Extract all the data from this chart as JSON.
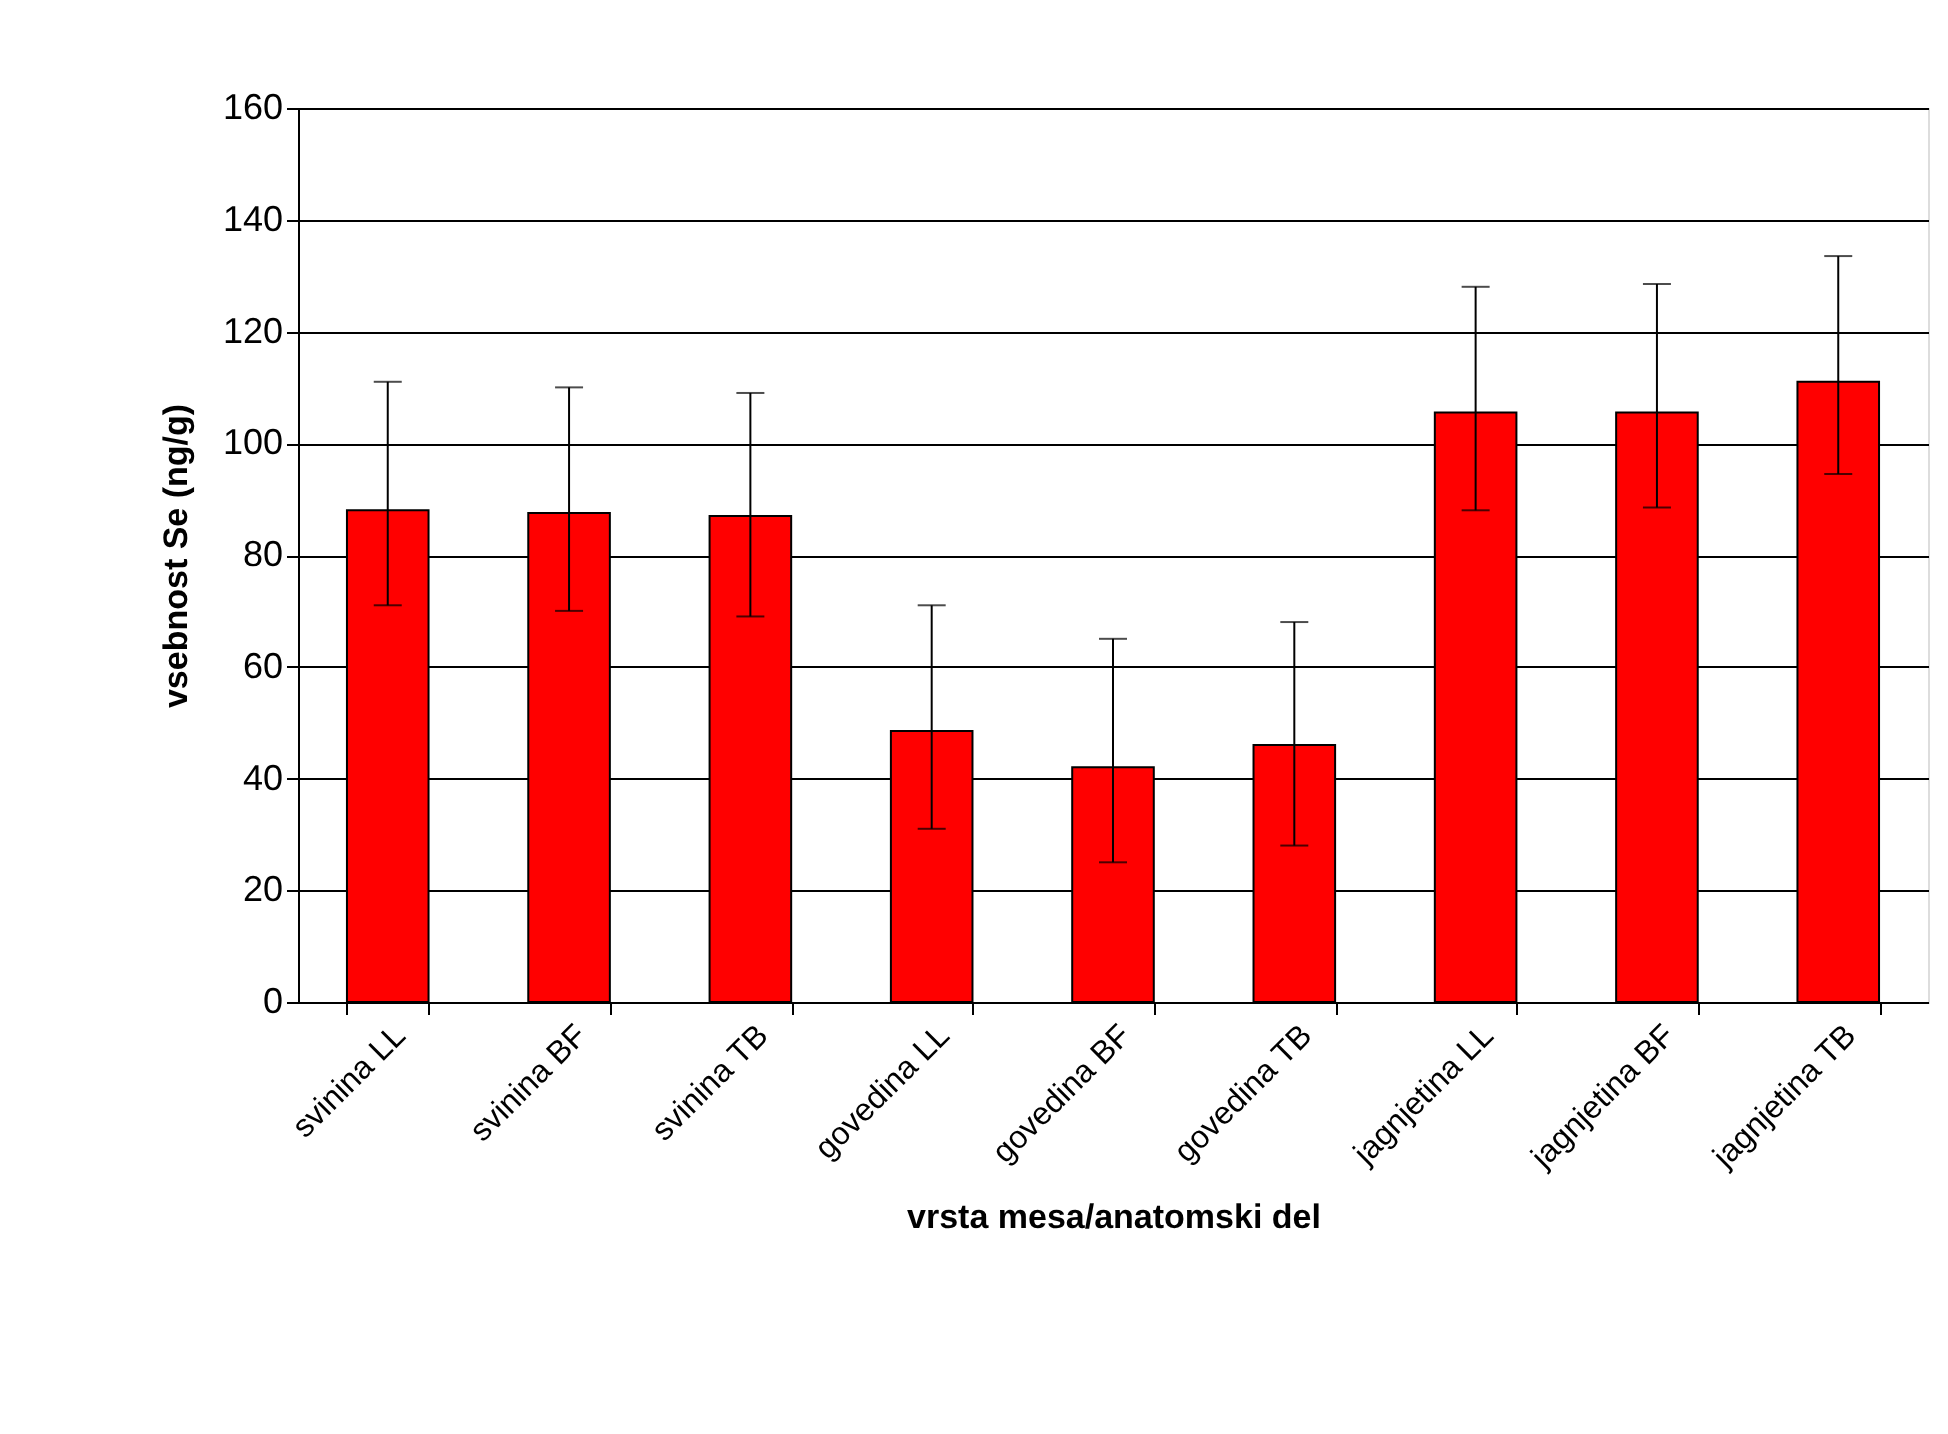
{
  "chart_data": {
    "type": "bar",
    "xlabel": "vrsta mesa/anatomski del",
    "ylabel": "vsebnost Se (ng/g)",
    "categories": [
      "svinina LL",
      "svinina BF",
      "svinina TB",
      "govedina LL",
      "govedina BF",
      "govedina TB",
      "jagnjetina LL",
      "jagnjetina BF",
      "jagnjetina TB"
    ],
    "values": [
      88,
      87.5,
      87,
      48.5,
      42,
      46,
      105.5,
      105.5,
      111
    ],
    "errors": [
      [
        71,
        111
      ],
      [
        70,
        110
      ],
      [
        69,
        109
      ],
      [
        31,
        71
      ],
      [
        25,
        65
      ],
      [
        28,
        68
      ],
      [
        88,
        128
      ],
      [
        88.5,
        128.5
      ],
      [
        94.5,
        133.5
      ]
    ],
    "color": "#ff0000",
    "ylim": [
      0,
      160
    ],
    "yticks": [
      0,
      20,
      40,
      60,
      80,
      100,
      120,
      140,
      160
    ],
    "grid": "y"
  }
}
